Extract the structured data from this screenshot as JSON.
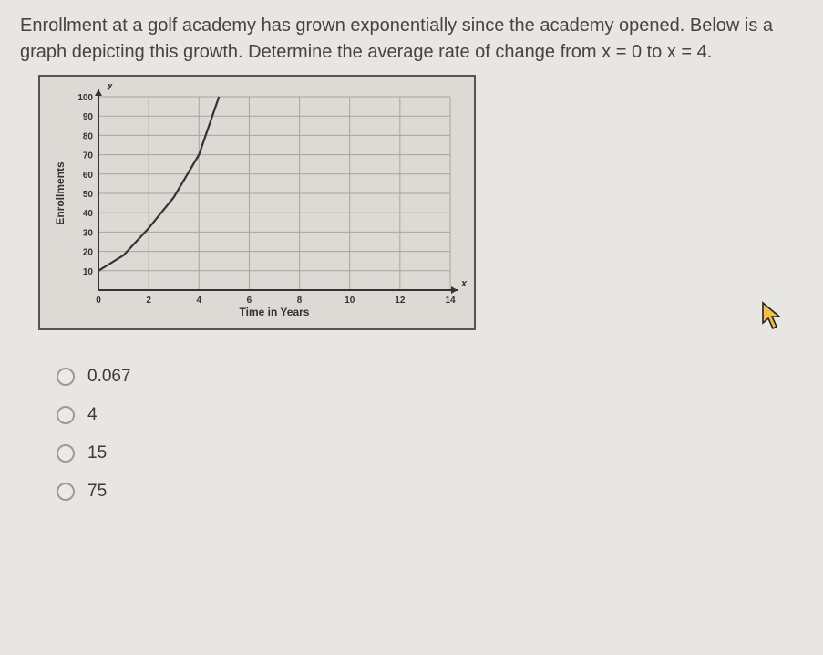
{
  "question": {
    "line1": "Enrollment at a golf academy has grown exponentially since the academy opened.",
    "line2": "Below is a graph depicting this growth. Determine the average rate of change from x",
    "line3": "= 0 to x = 4."
  },
  "chart": {
    "type": "line",
    "y_axis_label": "Enrollments",
    "x_axis_label": "Time in Years",
    "y_label_token": "y",
    "x_label_token": "x",
    "xlim": [
      0,
      14
    ],
    "ylim": [
      0,
      100
    ],
    "x_ticks": [
      0,
      2,
      4,
      6,
      8,
      10,
      12,
      14
    ],
    "y_ticks": [
      10,
      20,
      30,
      40,
      50,
      60,
      70,
      80,
      90,
      100
    ],
    "grid_color": "#a8a49e",
    "axis_color": "#333333",
    "curve_color": "#333333",
    "background_color": "#ddd9d4",
    "label_fontsize": 11,
    "tick_fontsize": 10,
    "curve_points": [
      {
        "x": 0,
        "y": 10
      },
      {
        "x": 1,
        "y": 18
      },
      {
        "x": 2,
        "y": 32
      },
      {
        "x": 3,
        "y": 48
      },
      {
        "x": 4,
        "y": 70
      },
      {
        "x": 4.8,
        "y": 100
      }
    ]
  },
  "options": [
    {
      "label": "0.067"
    },
    {
      "label": "4"
    },
    {
      "label": "15"
    },
    {
      "label": "75"
    }
  ],
  "cursor": {
    "fill": "#f4c04a",
    "stroke": "#222222"
  }
}
